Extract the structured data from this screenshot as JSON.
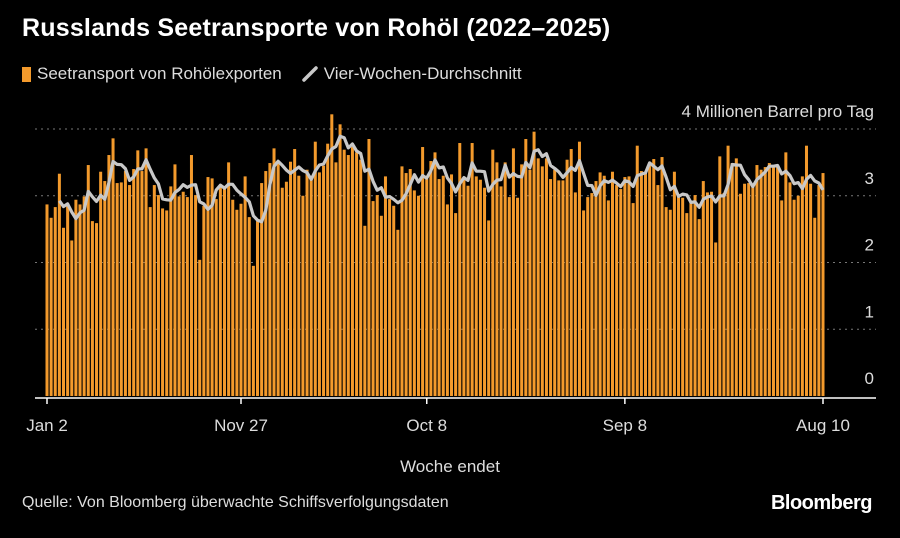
{
  "title": "Russlands Seetransporte von Rohöl (2022–2025)",
  "legend": {
    "bars": "Seetransport von Rohölexporten",
    "line": "Vier-Wochen-Durchschnitt"
  },
  "source": "Quelle: Von Bloomberg überwachte Schiffsverfolgungsdaten",
  "logo": "Bloomberg",
  "colors": {
    "bar": "#f39a2c",
    "line": "#c8c8c8",
    "background": "#000000"
  },
  "chart_data": {
    "type": "bar",
    "title": "Russlands Seetransporte von Rohöl (2022–2025)",
    "xlabel": "Woche endet",
    "ylabel": "4 Millionen Barrel pro Tag",
    "ylim": [
      0,
      4
    ],
    "yticks": [
      {
        "value": 0,
        "label": "0"
      },
      {
        "value": 1,
        "label": "1"
      },
      {
        "value": 2,
        "label": "2"
      },
      {
        "value": 3,
        "label": "3"
      },
      {
        "value": 4,
        "label": "4 Millionen Barrel pro Tag"
      }
    ],
    "xticks": [
      {
        "index": 0,
        "label": "Jan 2"
      },
      {
        "index": 47,
        "label": "Nov 27"
      },
      {
        "index": 92,
        "label": "Oct 8"
      },
      {
        "index": 140,
        "label": "Sep 8"
      },
      {
        "index": 188,
        "label": "Aug 10"
      }
    ],
    "grid": true,
    "legend_position": "top-left",
    "series": [
      {
        "name": "Seetransport von Rohölexporten",
        "type": "bar",
        "values": [
          2.87,
          2.67,
          2.83,
          3.33,
          2.52,
          2.84,
          2.33,
          2.94,
          2.87,
          2.99,
          3.46,
          2.62,
          2.59,
          3.36,
          3.22,
          3.61,
          3.86,
          3.19,
          3.2,
          3.37,
          3.16,
          3.4,
          3.68,
          3.37,
          3.71,
          2.83,
          3.16,
          3.01,
          2.81,
          2.78,
          3.14,
          3.47,
          2.99,
          3.06,
          2.98,
          3.61,
          3.01,
          2.04,
          2.85,
          3.28,
          3.26,
          2.95,
          3.14,
          3.1,
          3.5,
          2.94,
          2.79,
          2.88,
          3.29,
          2.68,
          1.95,
          2.62,
          3.19,
          3.37,
          3.49,
          3.71,
          3.5,
          3.12,
          3.21,
          3.51,
          3.7,
          3.3,
          3.0,
          3.39,
          3.29,
          3.81,
          3.35,
          3.45,
          3.78,
          4.22,
          3.5,
          4.07,
          3.69,
          3.61,
          3.73,
          3.65,
          3.54,
          2.55,
          3.85,
          2.92,
          3.01,
          2.7,
          3.29,
          2.95,
          2.85,
          2.49,
          3.44,
          3.34,
          3.4,
          3.08,
          3.0,
          3.73,
          3.25,
          3.52,
          3.65,
          3.25,
          3.3,
          2.87,
          3.32,
          2.74,
          3.79,
          3.24,
          3.15,
          3.79,
          3.29,
          3.24,
          3.12,
          2.63,
          3.69,
          3.5,
          3.14,
          3.5,
          2.98,
          3.71,
          2.97,
          3.47,
          3.85,
          3.39,
          3.96,
          3.56,
          3.44,
          3.56,
          3.25,
          3.39,
          3.23,
          3.23,
          3.54,
          3.7,
          3.05,
          3.81,
          2.78,
          2.98,
          3.04,
          3.22,
          3.35,
          3.3,
          2.93,
          3.36,
          3.16,
          3.1,
          3.28,
          3.29,
          2.89,
          3.75,
          3.37,
          3.36,
          3.49,
          3.55,
          3.16,
          3.58,
          2.83,
          2.79,
          3.36,
          2.98,
          2.97,
          2.74,
          2.91,
          3.01,
          2.65,
          3.22,
          3.05,
          3.06,
          2.3,
          3.59,
          3.04,
          3.75,
          3.49,
          3.56,
          3.03,
          3.18,
          3.19,
          3.15,
          3.46,
          3.39,
          3.43,
          3.49,
          3.46,
          3.43,
          2.93,
          3.65,
          3.2,
          2.94,
          3.0,
          3.29,
          3.75,
          3.18,
          2.67,
          3.16,
          3.34
        ]
      },
      {
        "name": "Vier-Wochen-Durchschnitt",
        "type": "line",
        "moving_average_window": 4
      }
    ]
  }
}
